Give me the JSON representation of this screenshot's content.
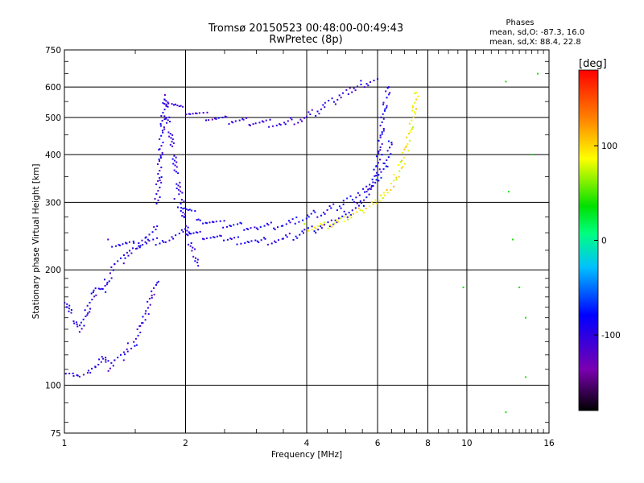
{
  "chart_data": {
    "type": "scatter",
    "title": "Tromsø 20150523 00:48:00-00:49:43",
    "subtitle": "RwPretec (8p)",
    "xlabel": "Frequency [MHz]",
    "ylabel": "Stationary phase Virtual Height [km]",
    "x_scale": "log",
    "y_scale": "log",
    "xlim": [
      1,
      16
    ],
    "ylim": [
      75,
      750
    ],
    "x_ticks": [
      {
        "value": 1,
        "label": "1"
      },
      {
        "value": 2,
        "label": "2"
      },
      {
        "value": 4,
        "label": "4"
      },
      {
        "value": 6,
        "label": "6"
      },
      {
        "value": 8,
        "label": "8"
      },
      {
        "value": 10,
        "label": "10"
      },
      {
        "value": 16,
        "label": "16"
      }
    ],
    "y_ticks": [
      {
        "value": 75,
        "label": "75"
      },
      {
        "value": 100,
        "label": "100"
      },
      {
        "value": 200,
        "label": "200"
      },
      {
        "value": 300,
        "label": "300"
      },
      {
        "value": 400,
        "label": "400"
      },
      {
        "value": 500,
        "label": "500"
      },
      {
        "value": 600,
        "label": "600"
      },
      {
        "value": 750,
        "label": "750"
      }
    ],
    "grid": true,
    "stats": {
      "heading": "Phases",
      "line_o": "mean, sd,O: -87.3, 16.0",
      "line_x": "mean, sd,X:  88.4, 22.8"
    },
    "colorbar": {
      "label": "[deg]",
      "range": [
        -180,
        180
      ],
      "ticks": [
        {
          "value": 100,
          "label": "100"
        },
        {
          "value": 0,
          "label": "0"
        },
        {
          "value": -100,
          "label": "-100"
        }
      ]
    },
    "traces": [
      {
        "role": "low E/F1 region",
        "phase": -100,
        "points": [
          [
            1.0,
            110
          ],
          [
            1.05,
            108
          ],
          [
            1.1,
            107
          ],
          [
            1.15,
            109
          ],
          [
            1.2,
            112
          ],
          [
            1.25,
            118
          ],
          [
            1.3,
            110
          ],
          [
            1.35,
            115
          ],
          [
            1.4,
            120
          ],
          [
            1.45,
            126
          ],
          [
            1.5,
            130
          ],
          [
            1.55,
            145
          ],
          [
            1.6,
            155
          ],
          [
            1.65,
            170
          ],
          [
            1.7,
            185
          ]
        ]
      },
      {
        "role": "lower layer trace",
        "phase": -95,
        "points": [
          [
            1.0,
            170
          ],
          [
            1.05,
            150
          ],
          [
            1.1,
            140
          ],
          [
            1.15,
            160
          ],
          [
            1.2,
            180
          ],
          [
            1.25,
            175
          ],
          [
            1.3,
            195
          ],
          [
            1.35,
            205
          ],
          [
            1.4,
            215
          ],
          [
            1.5,
            230
          ],
          [
            1.6,
            245
          ],
          [
            1.7,
            260
          ]
        ]
      },
      {
        "role": "F1 cusp",
        "phase": -100,
        "points": [
          [
            1.7,
            300
          ],
          [
            1.72,
            350
          ],
          [
            1.74,
            420
          ],
          [
            1.76,
            500
          ],
          [
            1.78,
            560
          ],
          [
            1.8,
            500
          ],
          [
            1.85,
            430
          ],
          [
            1.9,
            360
          ],
          [
            1.95,
            300
          ],
          [
            2.0,
            270
          ],
          [
            2.05,
            240
          ],
          [
            2.1,
            220
          ],
          [
            2.15,
            205
          ]
        ]
      },
      {
        "role": "O-mode F2 trace",
        "phase": -95,
        "points": [
          [
            1.3,
            235
          ],
          [
            1.5,
            232
          ],
          [
            1.8,
            240
          ],
          [
            2.0,
            250
          ],
          [
            2.5,
            240
          ],
          [
            3.0,
            236
          ],
          [
            3.5,
            240
          ],
          [
            4.0,
            252
          ],
          [
            4.5,
            262
          ],
          [
            5.0,
            278
          ],
          [
            5.5,
            300
          ],
          [
            5.8,
            330
          ],
          [
            6.0,
            370
          ],
          [
            6.1,
            420
          ],
          [
            6.2,
            500
          ],
          [
            6.3,
            560
          ],
          [
            6.4,
            600
          ]
        ]
      },
      {
        "role": "upper F trace",
        "phase": -90,
        "points": [
          [
            1.9,
            300
          ],
          [
            2.2,
            270
          ],
          [
            2.5,
            262
          ],
          [
            3.0,
            258
          ],
          [
            3.5,
            262
          ],
          [
            4.0,
            275
          ],
          [
            4.5,
            285
          ],
          [
            5.0,
            300
          ],
          [
            5.5,
            320
          ],
          [
            6.0,
            345
          ],
          [
            6.3,
            380
          ],
          [
            6.5,
            430
          ]
        ]
      },
      {
        "role": "X-mode F2 trace",
        "phase": 90,
        "points": [
          [
            4.0,
            258
          ],
          [
            4.5,
            262
          ],
          [
            5.0,
            272
          ],
          [
            5.5,
            285
          ],
          [
            6.0,
            300
          ],
          [
            6.5,
            330
          ],
          [
            6.8,
            360
          ],
          [
            7.0,
            400
          ],
          [
            7.2,
            450
          ],
          [
            7.4,
            520
          ],
          [
            7.5,
            580
          ]
        ]
      },
      {
        "role": "multiple echo",
        "phase": -105,
        "points": [
          [
            1.8,
            560
          ],
          [
            2.0,
            520
          ],
          [
            2.3,
            500
          ],
          [
            2.6,
            490
          ],
          [
            3.0,
            485
          ],
          [
            3.5,
            480
          ],
          [
            4.0,
            500
          ],
          [
            4.5,
            540
          ],
          [
            5.0,
            580
          ],
          [
            5.5,
            610
          ],
          [
            6.0,
            630
          ]
        ]
      },
      {
        "role": "scattered points",
        "phase": 0,
        "points": [
          [
            9.8,
            180
          ],
          [
            12.5,
            620
          ],
          [
            12.7,
            320
          ],
          [
            13.0,
            240
          ],
          [
            13.5,
            180
          ],
          [
            14.0,
            150
          ],
          [
            14.5,
            400
          ],
          [
            15.0,
            650
          ],
          [
            12.5,
            85
          ],
          [
            14.0,
            105
          ]
        ]
      }
    ]
  }
}
